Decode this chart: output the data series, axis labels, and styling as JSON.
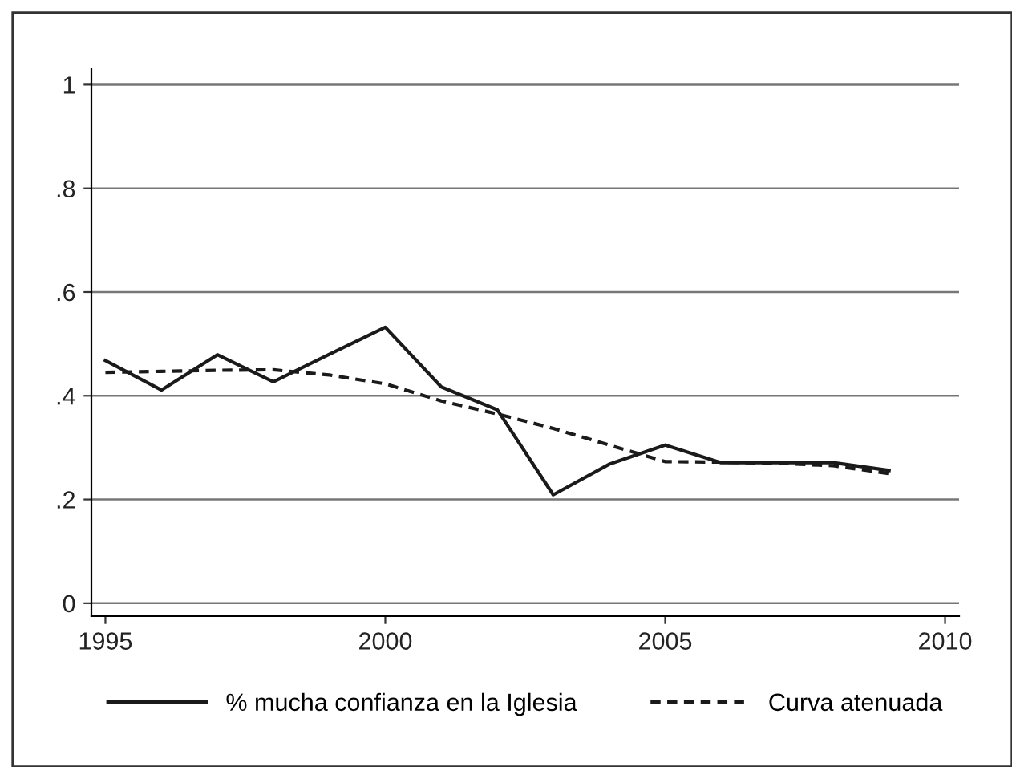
{
  "chart_data": {
    "type": "line",
    "x": [
      1995,
      1996,
      1997,
      1998,
      1999,
      2000,
      2001,
      2002,
      2003,
      2004,
      2005,
      2006,
      2007,
      2008,
      2009
    ],
    "series": [
      {
        "name": "% mucha confianza en la Iglesia",
        "color": "#1a1a1a",
        "line_style": "solid",
        "values": [
          0.468,
          0.411,
          0.479,
          0.427,
          0.48,
          0.532,
          0.417,
          0.373,
          0.209,
          0.268,
          0.305,
          0.271,
          0.271,
          0.271,
          0.256
        ]
      },
      {
        "name": "Curva atenuada",
        "color": "#1a1a1a",
        "line_style": "dashed",
        "values": [
          0.445,
          0.447,
          0.449,
          0.45,
          0.44,
          0.423,
          0.39,
          0.365,
          0.337,
          0.305,
          0.273,
          0.272,
          0.27,
          0.265,
          0.25
        ]
      }
    ],
    "xlim": [
      1994.75,
      2010.25
    ],
    "xticks": [
      1995,
      2000,
      2005,
      2010
    ],
    "ylim": [
      -0.025,
      1.03
    ],
    "yticks": [
      {
        "value": 0,
        "label": "0"
      },
      {
        "value": 0.2,
        "label": ".2"
      },
      {
        "value": 0.4,
        "label": ".4"
      },
      {
        "value": 0.6,
        "label": ".6"
      },
      {
        "value": 0.8,
        "label": ".8"
      },
      {
        "value": 1,
        "label": "1"
      }
    ],
    "grid": "y",
    "legend": "bottom",
    "marker": "none"
  }
}
